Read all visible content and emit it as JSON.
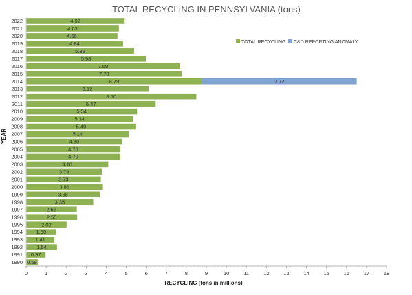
{
  "chart_data": {
    "type": "bar",
    "orientation": "horizontal",
    "stacked": true,
    "title": "TOTAL RECYCLING IN PENNSYLVANIA (tons)",
    "xlabel": "RECYCLING (tons in millions)",
    "ylabel": "YEAR",
    "xlim": [
      0,
      18
    ],
    "x_ticks": [
      0,
      1,
      2,
      3,
      4,
      5,
      6,
      7,
      8,
      9,
      10,
      11,
      12,
      13,
      14,
      15,
      16,
      17,
      18
    ],
    "legend_position": "top-right",
    "categories": [
      "2022",
      "2021",
      "2020",
      "2019",
      "2018",
      "2017",
      "2016",
      "2015",
      "2014",
      "2013",
      "2012",
      "2011",
      "2010",
      "2009",
      "2008",
      "2007",
      "2006",
      "2005",
      "2004",
      "2003",
      "2002",
      "2001",
      "2000",
      "1999",
      "1998",
      "1997",
      "1996",
      "1995",
      "1994",
      "1993",
      "1992",
      "1991",
      "1990"
    ],
    "series": [
      {
        "name": "TOTAL RECYCLING",
        "color": "#8db153",
        "values": [
          4.92,
          4.63,
          4.56,
          4.84,
          5.39,
          5.98,
          7.69,
          7.78,
          8.79,
          6.12,
          8.5,
          6.47,
          5.54,
          5.34,
          5.49,
          5.14,
          4.8,
          4.7,
          4.7,
          4.1,
          3.79,
          3.73,
          3.83,
          3.68,
          3.35,
          2.53,
          2.55,
          2.02,
          1.5,
          1.41,
          1.54,
          0.97,
          0.58
        ],
        "data_labels": [
          "4.92",
          "4.63",
          "4.56",
          "4.84",
          "5.39",
          "5.98",
          "7.69",
          "7.78",
          "8.79",
          "6.12",
          "8.50",
          "6.47",
          "5.54",
          "5.34",
          "5.49",
          "5.14",
          "4.80",
          "4.70",
          "4.70",
          "4.10",
          "3.79",
          "3.73",
          "3.83",
          "3.68",
          "3.35",
          "2.53",
          "2.55",
          "2.02",
          "1.50",
          "1.41",
          "1.54",
          "0.97",
          "0.58"
        ]
      },
      {
        "name": "C&D REPORTING ANOMALY",
        "color": "#7fa3d1",
        "values": [
          null,
          null,
          null,
          null,
          null,
          null,
          null,
          null,
          7.72,
          null,
          null,
          null,
          null,
          null,
          null,
          null,
          null,
          null,
          null,
          null,
          null,
          null,
          null,
          null,
          null,
          null,
          null,
          null,
          null,
          null,
          null,
          null,
          null
        ],
        "data_labels": [
          "",
          "",
          "",
          "",
          "",
          "",
          "",
          "",
          "7.72",
          "",
          "",
          "",
          "",
          "",
          "",
          "",
          "",
          "",
          "",
          "",
          "",
          "",
          "",
          "",
          "",
          "",
          "",
          "",
          "",
          "",
          "",
          "",
          ""
        ]
      }
    ]
  }
}
